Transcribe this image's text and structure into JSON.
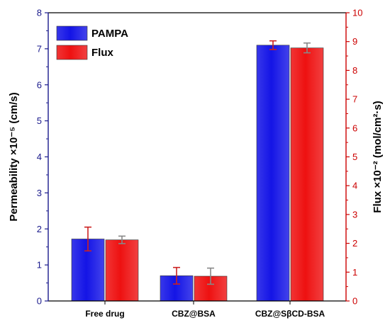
{
  "chart_data": {
    "type": "bar",
    "categories": [
      "Free drug",
      "CBZ@BSA",
      "CBZ@SβCD-BSA"
    ],
    "series": [
      {
        "name": "PAMPA",
        "axis": "left",
        "values": [
          1.72,
          0.7,
          7.1
        ],
        "errors": [
          0.33,
          0.23,
          0.12
        ],
        "color": "#1414e6"
      },
      {
        "name": "Flux",
        "axis": "right",
        "values": [
          2.12,
          0.86,
          8.78
        ],
        "errors": [
          0.13,
          0.28,
          0.17
        ],
        "color": "#ee1111"
      }
    ],
    "ylabel": "Permeability ×10⁻⁵ (cm/s)",
    "ylabel_right": "Flux ×10⁻² (mol/cm²·s)",
    "ylim": [
      0,
      8
    ],
    "ylim_right": [
      0,
      10
    ],
    "yticks": [
      "0",
      "1",
      "2",
      "3",
      "4",
      "5",
      "6",
      "7",
      "8"
    ],
    "yticks_right": [
      "0",
      "1",
      "2",
      "3",
      "4",
      "5",
      "6",
      "7",
      "8",
      "9",
      "10"
    ],
    "left_axis_color": "#1a1a8c",
    "right_axis_color": "#cc0000",
    "error_bar_colors": {
      "left": "#cc2222",
      "right": "#888888"
    },
    "legend_placement": "top-left",
    "grid": false
  }
}
